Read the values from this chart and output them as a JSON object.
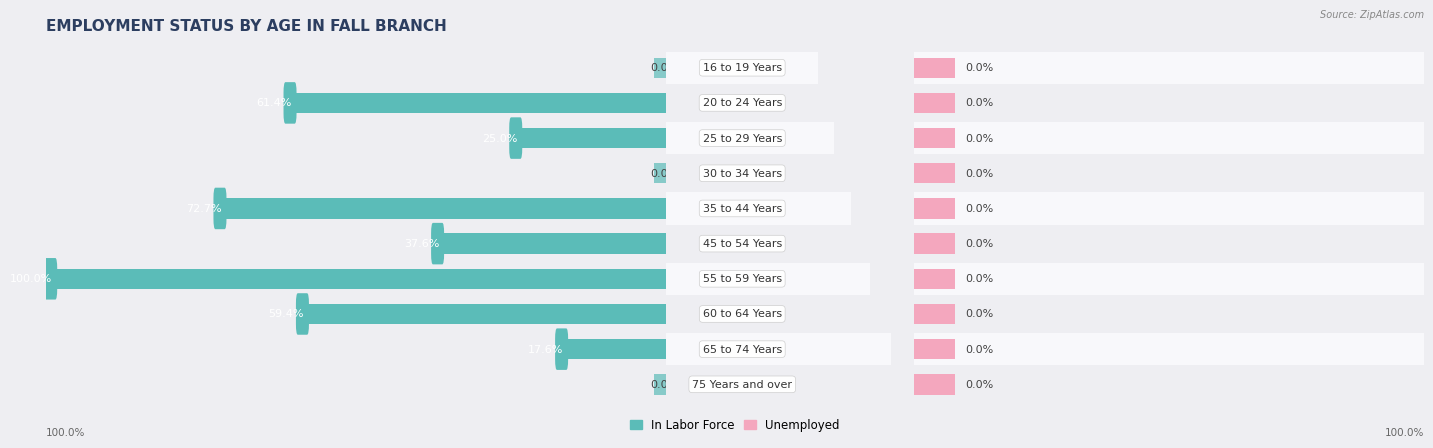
{
  "title": "EMPLOYMENT STATUS BY AGE IN FALL BRANCH",
  "source": "Source: ZipAtlas.com",
  "categories": [
    "16 to 19 Years",
    "20 to 24 Years",
    "25 to 29 Years",
    "30 to 34 Years",
    "35 to 44 Years",
    "45 to 54 Years",
    "55 to 59 Years",
    "60 to 64 Years",
    "65 to 74 Years",
    "75 Years and over"
  ],
  "in_labor_force": [
    0.0,
    61.4,
    25.0,
    0.0,
    72.7,
    37.6,
    100.0,
    59.4,
    17.6,
    0.0
  ],
  "unemployed": [
    0.0,
    0.0,
    0.0,
    0.0,
    0.0,
    0.0,
    0.0,
    0.0,
    0.0,
    0.0
  ],
  "labor_color": "#5BBCB8",
  "unemployed_color": "#F4A7BE",
  "bg_color": "#EEEEF2",
  "row_bg_light": "#F8F8FB",
  "row_bg_dark": "#EEEEF2",
  "axis_max": 100.0,
  "placeholder_bar": 8.0,
  "figsize": [
    14.06,
    4.51
  ],
  "dpi": 100,
  "title_fontsize": 11,
  "label_fontsize": 8,
  "value_fontsize": 8,
  "tick_fontsize": 7.5,
  "legend_fontsize": 8.5,
  "bar_height": 0.58
}
